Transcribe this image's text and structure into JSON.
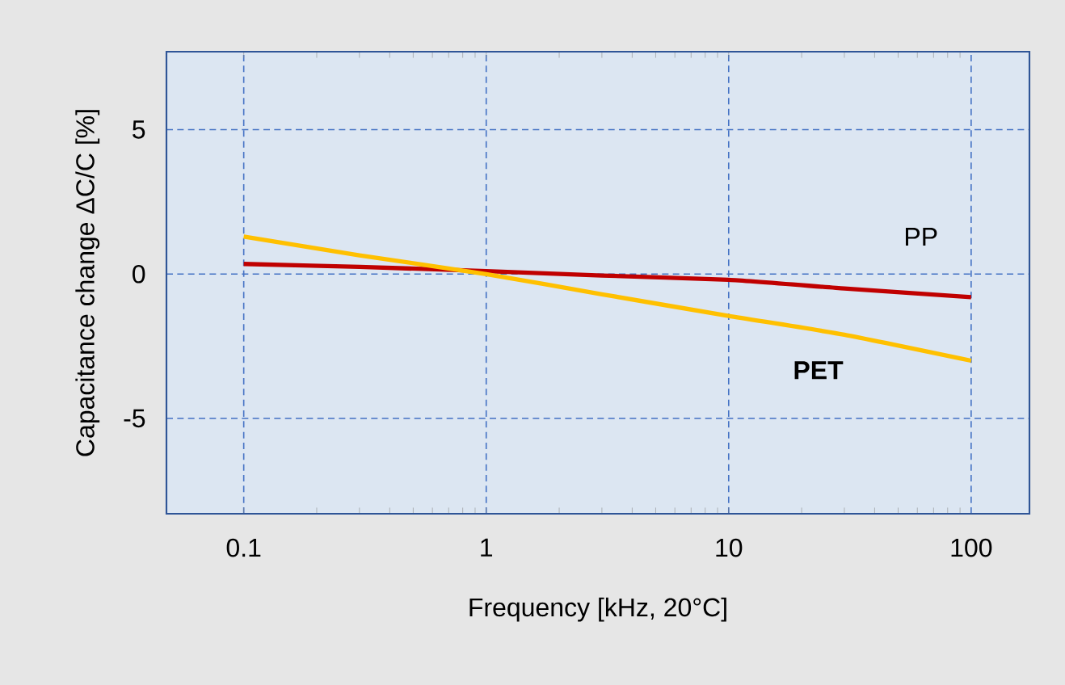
{
  "chart_data": {
    "type": "line",
    "xlabel": "Frequency [kHz, 20°C]",
    "ylabel": "Capacitance change ΔC/C [%]",
    "log": "x",
    "xlim": [
      0.048,
      174
    ],
    "xticks": [
      0.1,
      1,
      10,
      100
    ],
    "ylim": [
      -8.3,
      7.7
    ],
    "yticks": [
      -5,
      0,
      5
    ],
    "grid": true,
    "legend": false,
    "x": [
      0.1,
      0.3,
      1,
      3,
      10,
      30,
      100
    ],
    "series": [
      {
        "name": "PP",
        "color": "#c00000",
        "values": [
          0.35,
          0.25,
          0.1,
          -0.05,
          -0.2,
          -0.5,
          -0.8
        ]
      },
      {
        "name": "PET",
        "color": "#ffc000",
        "values": [
          1.3,
          0.65,
          0.0,
          -0.7,
          -1.45,
          -2.1,
          -3.0
        ]
      }
    ]
  }
}
